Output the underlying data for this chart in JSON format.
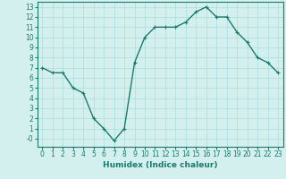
{
  "x": [
    0,
    1,
    2,
    3,
    4,
    5,
    6,
    7,
    8,
    9,
    10,
    11,
    12,
    13,
    14,
    15,
    16,
    17,
    18,
    19,
    20,
    21,
    22,
    23
  ],
  "y": [
    7.0,
    6.5,
    6.5,
    5.0,
    4.5,
    2.0,
    1.0,
    -0.2,
    1.0,
    7.5,
    10.0,
    11.0,
    11.0,
    11.0,
    11.5,
    12.5,
    13.0,
    12.0,
    12.0,
    10.5,
    9.5,
    8.0,
    7.5,
    6.5
  ],
  "line_color": "#1a7a6e",
  "marker": "+",
  "marker_size": 3,
  "marker_linewidth": 0.8,
  "bg_color": "#d4f0ee",
  "grid_color": "#aadddd",
  "xlabel": "Humidex (Indice chaleur)",
  "xlim": [
    -0.5,
    23.5
  ],
  "ylim": [
    -0.8,
    13.5
  ],
  "xticks": [
    0,
    1,
    2,
    3,
    4,
    5,
    6,
    7,
    8,
    9,
    10,
    11,
    12,
    13,
    14,
    15,
    16,
    17,
    18,
    19,
    20,
    21,
    22,
    23
  ],
  "yticks": [
    0,
    1,
    2,
    3,
    4,
    5,
    6,
    7,
    8,
    9,
    10,
    11,
    12,
    13
  ],
  "ytick_labels": [
    "-0",
    "1",
    "2",
    "3",
    "4",
    "5",
    "6",
    "7",
    "8",
    "9",
    "10",
    "11",
    "12",
    "13"
  ],
  "xlabel_fontsize": 6.5,
  "tick_fontsize": 5.5,
  "tick_color": "#1a7a6e",
  "axis_color": "#1a7a6e",
  "linewidth": 1.0
}
